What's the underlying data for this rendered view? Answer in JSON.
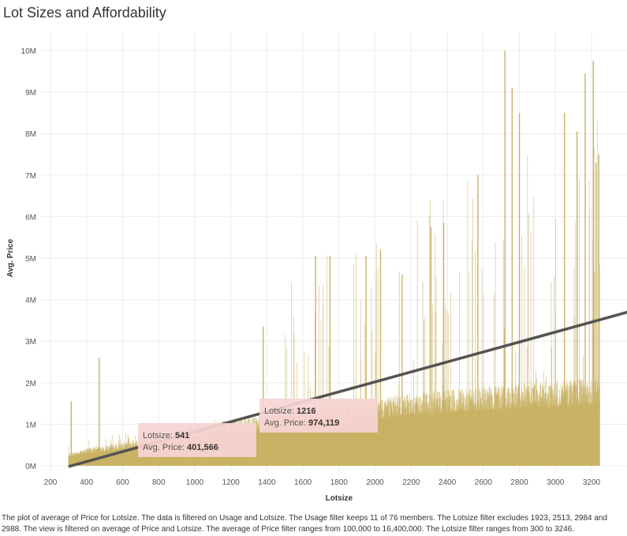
{
  "title": "Lot Sizes and Affordability",
  "caption": "The plot of average of Price for Lotsize. The data is filtered on Usage and Lotsize. The Usage filter keeps 11 of 76 members. The Lotsize filter excludes 1923, 2513, 2984 and 2988. The view is filtered on average of Price and Lotsize. The average of Price filter ranges from 100,000 to 16,400,000. The Lotsize filter ranges from 300 to 3246.",
  "colors": {
    "bars": "#c9b264",
    "area_fill": "#d8c48a",
    "trend": "#555350",
    "tooltip_bg": "#f7d4d4",
    "grid": "#ececec"
  },
  "chart_data": {
    "type": "bar",
    "title": "Lot Sizes and Affordability",
    "xlabel": "Lotsize",
    "ylabel": "Avg. Price",
    "xlim": [
      200,
      3400
    ],
    "ylim": [
      0,
      10000000
    ],
    "x_ticks": [
      200,
      400,
      600,
      800,
      1000,
      1200,
      1400,
      1600,
      1800,
      2000,
      2200,
      2400,
      2600,
      2800,
      3000,
      3200
    ],
    "x_tick_labels": [
      "200",
      "400",
      "600",
      "800",
      "1000",
      "1200",
      "1400",
      "1600",
      "1800",
      "2000",
      "2200",
      "2400",
      "2600",
      "2800",
      "3000",
      "3200"
    ],
    "y_ticks": [
      0,
      1000000,
      2000000,
      3000000,
      4000000,
      5000000,
      6000000,
      7000000,
      8000000,
      9000000,
      10000000
    ],
    "y_tick_labels": [
      "0M",
      "1M",
      "2M",
      "3M",
      "4M",
      "5M",
      "6M",
      "7M",
      "8M",
      "9M",
      "10M"
    ],
    "grid": true,
    "x_range_shown": [
      300,
      3246
    ],
    "envelope_x": [
      300,
      400,
      600,
      800,
      1000,
      1200,
      1400,
      1600,
      1800,
      2000,
      2200,
      2400,
      2600,
      2800,
      3000,
      3200,
      3246
    ],
    "envelope_y": [
      200000,
      300000,
      400000,
      550000,
      700000,
      800000,
      900000,
      1000000,
      1100000,
      1150000,
      1250000,
      1300000,
      1350000,
      1400000,
      1450000,
      1500000,
      1500000
    ],
    "peaks_x": [
      315,
      470,
      1380,
      1670,
      1750,
      1950,
      2030,
      2150,
      2310,
      2380,
      2570,
      2720,
      2760,
      2800,
      3050,
      3120,
      3165,
      3210,
      3225,
      3240
    ],
    "peaks_y": [
      1550000,
      2600000,
      3350000,
      5050000,
      5050000,
      5050000,
      5200000,
      4600000,
      5750000,
      5850000,
      7000000,
      10000000,
      9100000,
      8500000,
      8500000,
      8050000,
      9450000,
      9750000,
      7300000,
      7500000
    ],
    "trend_line": {
      "x": [
        300,
        3400
      ],
      "y": [
        -20000,
        3700000
      ]
    },
    "tooltips": [
      {
        "lotsize_label": "Lotsize:",
        "lotsize": "541",
        "price_label": "Avg. Price:",
        "price": "401,566"
      },
      {
        "lotsize_label": "Lotsize:",
        "lotsize": "1216",
        "price_label": "Avg. Price:",
        "price": "974,119"
      }
    ]
  }
}
